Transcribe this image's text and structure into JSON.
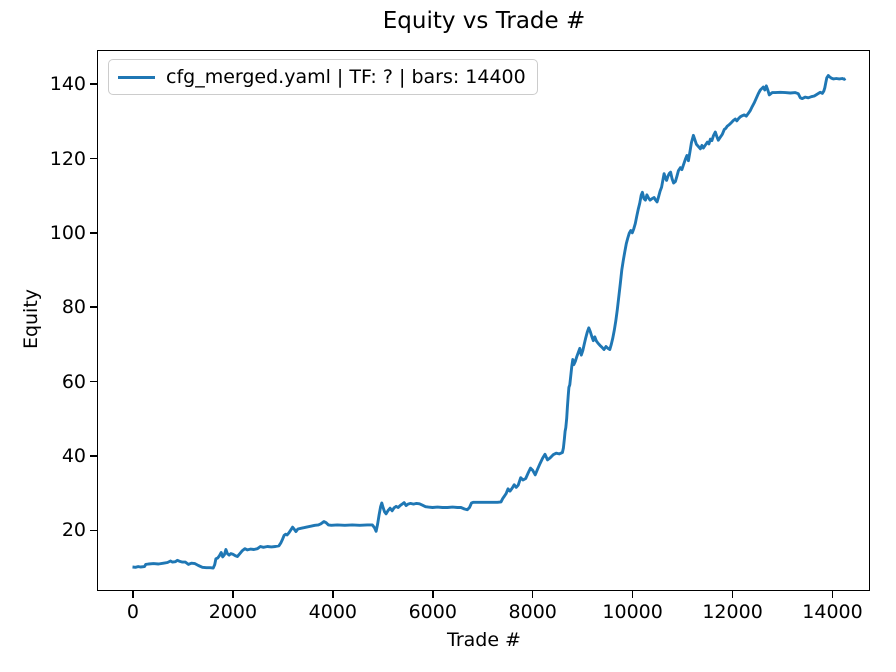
{
  "chart_data": {
    "type": "line",
    "title": "Equity vs Trade #",
    "xlabel": "Trade #",
    "ylabel": "Equity",
    "legend_position": "upper-left",
    "grid": false,
    "xlim": [
      -690,
      14740
    ],
    "ylim": [
      3.8,
      148.8
    ],
    "xticks": [
      0,
      2000,
      4000,
      6000,
      8000,
      10000,
      12000,
      14000
    ],
    "yticks": [
      20,
      40,
      60,
      80,
      100,
      120,
      140
    ],
    "series": [
      {
        "name": "cfg_merged.yaml | TF: ? | bars: 14400",
        "color": "#1f77b4",
        "points": [
          [
            0,
            10.0
          ],
          [
            60,
            9.9
          ],
          [
            110,
            10.1
          ],
          [
            160,
            10.0
          ],
          [
            240,
            10.1
          ],
          [
            265,
            10.7
          ],
          [
            320,
            10.8
          ],
          [
            420,
            10.9
          ],
          [
            520,
            10.8
          ],
          [
            620,
            11.0
          ],
          [
            700,
            11.2
          ],
          [
            760,
            11.6
          ],
          [
            800,
            11.3
          ],
          [
            860,
            11.4
          ],
          [
            900,
            11.8
          ],
          [
            950,
            11.5
          ],
          [
            1000,
            11.3
          ],
          [
            1060,
            11.3
          ],
          [
            1120,
            10.7
          ],
          [
            1180,
            11.0
          ],
          [
            1250,
            10.9
          ],
          [
            1320,
            10.4
          ],
          [
            1400,
            9.9
          ],
          [
            1480,
            9.8
          ],
          [
            1560,
            9.8
          ],
          [
            1615,
            9.7
          ],
          [
            1645,
            10.6
          ],
          [
            1670,
            12.2
          ],
          [
            1705,
            12.4
          ],
          [
            1740,
            13.0
          ],
          [
            1775,
            13.9
          ],
          [
            1805,
            12.7
          ],
          [
            1840,
            13.3
          ],
          [
            1870,
            14.7
          ],
          [
            1900,
            13.6
          ],
          [
            1935,
            13.2
          ],
          [
            1970,
            13.6
          ],
          [
            2010,
            13.4
          ],
          [
            2060,
            13.0
          ],
          [
            2100,
            12.8
          ],
          [
            2150,
            13.6
          ],
          [
            2200,
            14.4
          ],
          [
            2250,
            14.9
          ],
          [
            2300,
            14.6
          ],
          [
            2360,
            14.8
          ],
          [
            2430,
            14.7
          ],
          [
            2500,
            14.9
          ],
          [
            2560,
            15.5
          ],
          [
            2620,
            15.3
          ],
          [
            2700,
            15.5
          ],
          [
            2780,
            15.4
          ],
          [
            2860,
            15.5
          ],
          [
            2930,
            15.7
          ],
          [
            2970,
            16.5
          ],
          [
            3005,
            17.5
          ],
          [
            3035,
            18.5
          ],
          [
            3065,
            18.8
          ],
          [
            3095,
            18.6
          ],
          [
            3130,
            19.2
          ],
          [
            3170,
            20.0
          ],
          [
            3205,
            20.7
          ],
          [
            3240,
            20.1
          ],
          [
            3270,
            19.5
          ],
          [
            3310,
            20.2
          ],
          [
            3370,
            20.4
          ],
          [
            3440,
            20.6
          ],
          [
            3510,
            20.8
          ],
          [
            3580,
            21.0
          ],
          [
            3650,
            21.2
          ],
          [
            3720,
            21.3
          ],
          [
            3770,
            21.6
          ],
          [
            3830,
            22.2
          ],
          [
            3875,
            21.9
          ],
          [
            3920,
            21.3
          ],
          [
            3980,
            21.2
          ],
          [
            4100,
            21.3
          ],
          [
            4250,
            21.2
          ],
          [
            4400,
            21.3
          ],
          [
            4550,
            21.2
          ],
          [
            4700,
            21.3
          ],
          [
            4800,
            21.3
          ],
          [
            4845,
            20.5
          ],
          [
            4875,
            19.6
          ],
          [
            4905,
            21.5
          ],
          [
            4935,
            24.0
          ],
          [
            4965,
            26.2
          ],
          [
            4990,
            27.2
          ],
          [
            5015,
            26.0
          ],
          [
            5045,
            24.8
          ],
          [
            5075,
            24.3
          ],
          [
            5115,
            25.2
          ],
          [
            5155,
            25.8
          ],
          [
            5195,
            25.1
          ],
          [
            5235,
            25.9
          ],
          [
            5275,
            26.3
          ],
          [
            5315,
            26.0
          ],
          [
            5365,
            26.6
          ],
          [
            5405,
            27.0
          ],
          [
            5435,
            27.3
          ],
          [
            5475,
            26.5
          ],
          [
            5515,
            26.9
          ],
          [
            5565,
            27.1
          ],
          [
            5625,
            26.9
          ],
          [
            5685,
            27.1
          ],
          [
            5745,
            27.0
          ],
          [
            5805,
            26.6
          ],
          [
            5865,
            26.2
          ],
          [
            5925,
            26.1
          ],
          [
            6005,
            26.0
          ],
          [
            6105,
            26.1
          ],
          [
            6205,
            26.0
          ],
          [
            6305,
            26.0
          ],
          [
            6405,
            26.1
          ],
          [
            6505,
            26.0
          ],
          [
            6575,
            26.0
          ],
          [
            6645,
            25.6
          ],
          [
            6700,
            25.4
          ],
          [
            6745,
            26.0
          ],
          [
            6785,
            27.2
          ],
          [
            6825,
            27.4
          ],
          [
            6905,
            27.4
          ],
          [
            7005,
            27.4
          ],
          [
            7105,
            27.4
          ],
          [
            7205,
            27.4
          ],
          [
            7305,
            27.4
          ],
          [
            7375,
            27.5
          ],
          [
            7410,
            28.4
          ],
          [
            7445,
            29.1
          ],
          [
            7480,
            29.8
          ],
          [
            7515,
            31.0
          ],
          [
            7555,
            30.4
          ],
          [
            7600,
            31.2
          ],
          [
            7640,
            32.1
          ],
          [
            7680,
            31.4
          ],
          [
            7720,
            32.0
          ],
          [
            7770,
            34.0
          ],
          [
            7815,
            33.4
          ],
          [
            7870,
            33.8
          ],
          [
            7920,
            35.3
          ],
          [
            7965,
            36.6
          ],
          [
            8010,
            36.0
          ],
          [
            8060,
            34.8
          ],
          [
            8110,
            36.4
          ],
          [
            8160,
            37.9
          ],
          [
            8210,
            39.3
          ],
          [
            8255,
            40.3
          ],
          [
            8305,
            38.8
          ],
          [
            8355,
            39.3
          ],
          [
            8420,
            40.2
          ],
          [
            8480,
            40.6
          ],
          [
            8540,
            40.4
          ],
          [
            8605,
            40.8
          ],
          [
            8625,
            42.0
          ],
          [
            8645,
            44.5
          ],
          [
            8658,
            46.5
          ],
          [
            8672,
            47.5
          ],
          [
            8690,
            50.0
          ],
          [
            8705,
            53.0
          ],
          [
            8720,
            56.0
          ],
          [
            8735,
            58.3
          ],
          [
            8752,
            59.0
          ],
          [
            8772,
            61.5
          ],
          [
            8792,
            64.0
          ],
          [
            8812,
            65.8
          ],
          [
            8832,
            64.4
          ],
          [
            8862,
            65.3
          ],
          [
            8892,
            66.6
          ],
          [
            8922,
            67.7
          ],
          [
            8952,
            68.8
          ],
          [
            8982,
            67.0
          ],
          [
            9012,
            68.2
          ],
          [
            9042,
            70.0
          ],
          [
            9072,
            71.7
          ],
          [
            9102,
            73.2
          ],
          [
            9132,
            74.3
          ],
          [
            9162,
            73.3
          ],
          [
            9192,
            72.0
          ],
          [
            9222,
            70.9
          ],
          [
            9252,
            71.9
          ],
          [
            9282,
            70.8
          ],
          [
            9317,
            70.2
          ],
          [
            9357,
            69.6
          ],
          [
            9397,
            69.1
          ],
          [
            9437,
            68.5
          ],
          [
            9477,
            69.3
          ],
          [
            9517,
            68.8
          ],
          [
            9552,
            68.5
          ],
          [
            9582,
            69.9
          ],
          [
            9612,
            71.6
          ],
          [
            9642,
            73.7
          ],
          [
            9672,
            76.2
          ],
          [
            9702,
            79.2
          ],
          [
            9732,
            82.7
          ],
          [
            9762,
            86.2
          ],
          [
            9792,
            89.9
          ],
          [
            9822,
            92.5
          ],
          [
            9852,
            94.8
          ],
          [
            9882,
            97.0
          ],
          [
            9912,
            98.5
          ],
          [
            9942,
            99.8
          ],
          [
            9972,
            100.5
          ],
          [
            10002,
            99.9
          ],
          [
            10032,
            101.0
          ],
          [
            10062,
            102.4
          ],
          [
            10092,
            104.4
          ],
          [
            10122,
            106.2
          ],
          [
            10152,
            107.8
          ],
          [
            10182,
            110.0
          ],
          [
            10205,
            110.8
          ],
          [
            10235,
            109.1
          ],
          [
            10265,
            108.7
          ],
          [
            10295,
            110.1
          ],
          [
            10325,
            109.3
          ],
          [
            10360,
            108.7
          ],
          [
            10400,
            109.1
          ],
          [
            10440,
            109.4
          ],
          [
            10470,
            108.7
          ],
          [
            10500,
            108.2
          ],
          [
            10530,
            109.6
          ],
          [
            10560,
            111.1
          ],
          [
            10590,
            112.2
          ],
          [
            10615,
            114.1
          ],
          [
            10640,
            115.8
          ],
          [
            10665,
            114.6
          ],
          [
            10690,
            114.0
          ],
          [
            10715,
            115.1
          ],
          [
            10745,
            115.9
          ],
          [
            10770,
            116.2
          ],
          [
            10800,
            114.4
          ],
          [
            10830,
            113.3
          ],
          [
            10865,
            113.7
          ],
          [
            10895,
            115.1
          ],
          [
            10925,
            116.6
          ],
          [
            10965,
            117.4
          ],
          [
            10995,
            116.9
          ],
          [
            11025,
            118.1
          ],
          [
            11065,
            119.7
          ],
          [
            11095,
            120.7
          ],
          [
            11125,
            119.3
          ],
          [
            11155,
            121.6
          ],
          [
            11185,
            124.1
          ],
          [
            11225,
            126.1
          ],
          [
            11255,
            124.9
          ],
          [
            11285,
            123.7
          ],
          [
            11325,
            123.1
          ],
          [
            11365,
            122.5
          ],
          [
            11395,
            123.4
          ],
          [
            11425,
            122.7
          ],
          [
            11465,
            123.5
          ],
          [
            11505,
            124.3
          ],
          [
            11535,
            123.8
          ],
          [
            11565,
            125.1
          ],
          [
            11595,
            124.7
          ],
          [
            11625,
            126.0
          ],
          [
            11665,
            127.0
          ],
          [
            11695,
            125.8
          ],
          [
            11725,
            124.8
          ],
          [
            11765,
            125.6
          ],
          [
            11805,
            126.4
          ],
          [
            11845,
            127.7
          ],
          [
            11875,
            128.0
          ],
          [
            11905,
            128.6
          ],
          [
            11945,
            129.0
          ],
          [
            11985,
            129.5
          ],
          [
            12025,
            130.1
          ],
          [
            12065,
            130.5
          ],
          [
            12095,
            130.0
          ],
          [
            12135,
            130.7
          ],
          [
            12165,
            131.1
          ],
          [
            12205,
            131.4
          ],
          [
            12245,
            131.6
          ],
          [
            12285,
            131.3
          ],
          [
            12325,
            132.0
          ],
          [
            12365,
            132.8
          ],
          [
            12405,
            133.9
          ],
          [
            12445,
            134.9
          ],
          [
            12485,
            136.1
          ],
          [
            12525,
            137.3
          ],
          [
            12565,
            138.3
          ],
          [
            12595,
            138.7
          ],
          [
            12625,
            139.1
          ],
          [
            12655,
            138.3
          ],
          [
            12685,
            139.4
          ],
          [
            12715,
            138.3
          ],
          [
            12745,
            137.0
          ],
          [
            12775,
            137.3
          ],
          [
            12805,
            137.6
          ],
          [
            12865,
            137.6
          ],
          [
            12965,
            137.7
          ],
          [
            13065,
            137.6
          ],
          [
            13165,
            137.5
          ],
          [
            13265,
            137.6
          ],
          [
            13325,
            137.3
          ],
          [
            13365,
            136.2
          ],
          [
            13405,
            136.0
          ],
          [
            13465,
            136.4
          ],
          [
            13525,
            136.2
          ],
          [
            13585,
            136.5
          ],
          [
            13645,
            136.7
          ],
          [
            13705,
            137.2
          ],
          [
            13765,
            137.7
          ],
          [
            13805,
            137.4
          ],
          [
            13835,
            138.0
          ],
          [
            13855,
            138.9
          ],
          [
            13875,
            140.3
          ],
          [
            13895,
            141.6
          ],
          [
            13925,
            142.2
          ],
          [
            13955,
            141.8
          ],
          [
            13985,
            141.5
          ],
          [
            14025,
            141.3
          ],
          [
            14085,
            141.4
          ],
          [
            14145,
            141.3
          ],
          [
            14205,
            141.4
          ],
          [
            14245,
            141.2
          ],
          [
            14270,
            141.4
          ]
        ]
      }
    ]
  }
}
